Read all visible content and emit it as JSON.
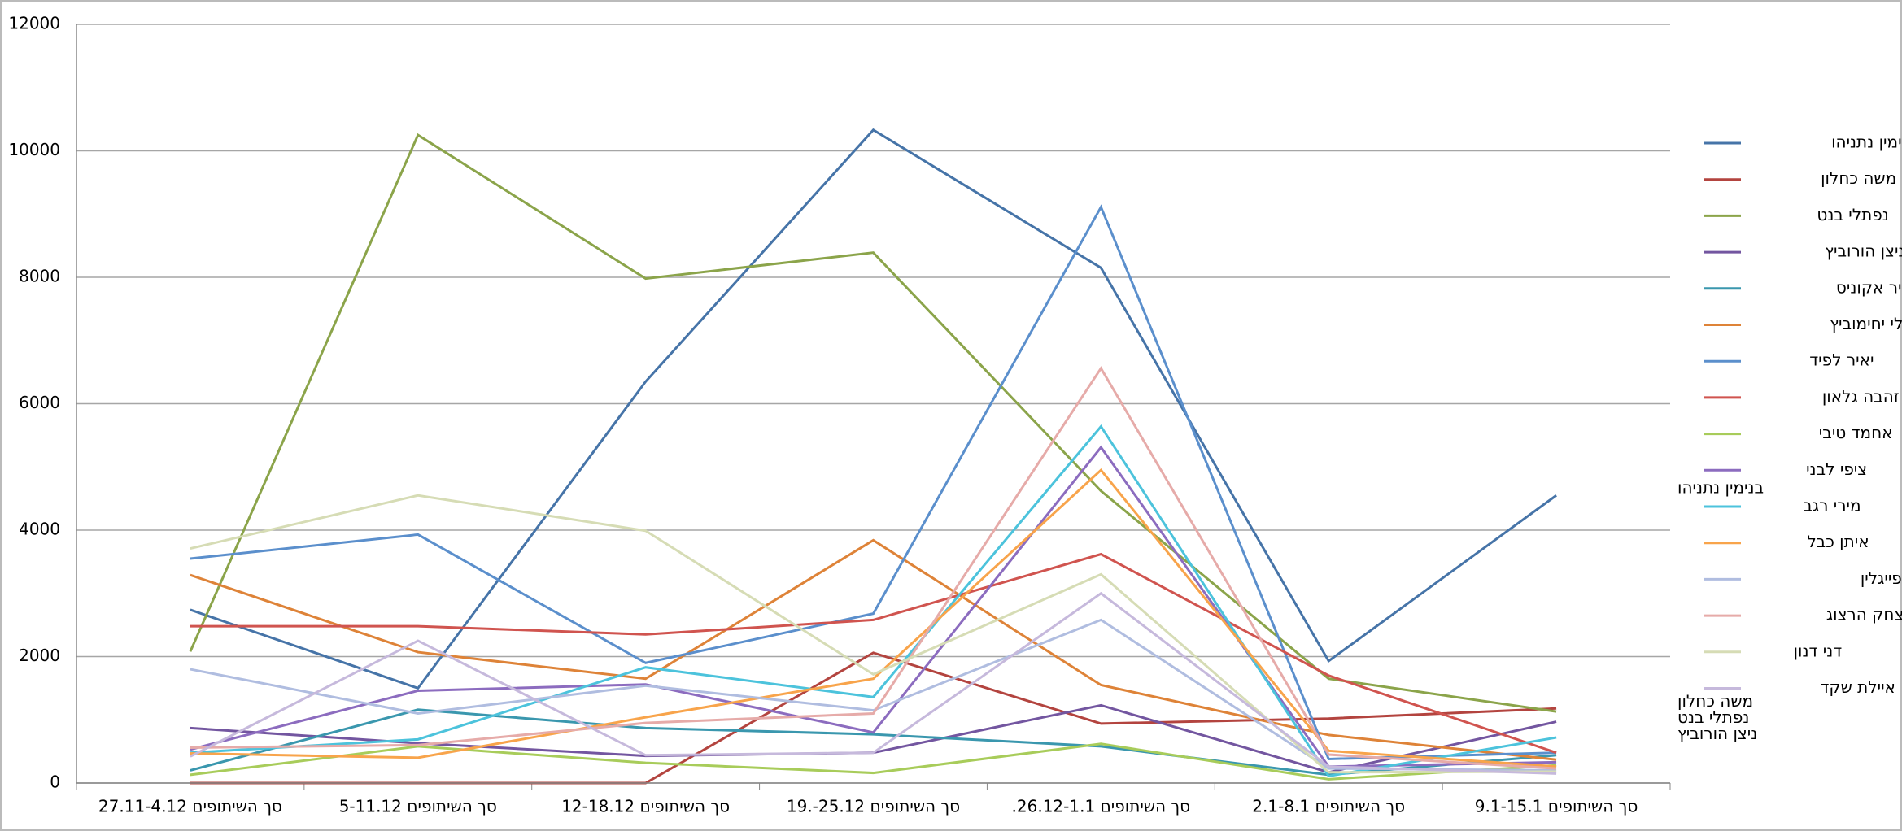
{
  "chart_data": {
    "type": "line",
    "categories": [
      "סך השיתופים 27.11-4.12",
      "סך השיתופים 5-11.12",
      "סך השיתופים 12-18.12",
      "סך השיתופים 25.12-.19",
      "סך השיתופים 26.12-1.1.",
      "סך השיתופים 2.1-8.1",
      "סך השיתופים 9.1-15.1"
    ],
    "ylim": [
      0,
      12000
    ],
    "yticks": [
      0,
      2000,
      4000,
      6000,
      8000,
      10000,
      12000
    ],
    "grid": true,
    "legend": "right",
    "series": [
      {
        "name": "בנימין נתניהו",
        "color": "#4674a8",
        "values": [
          2740,
          1500,
          6350,
          10330,
          8150,
          1930,
          4550
        ],
        "end_label": "בנימין נתניהו"
      },
      {
        "name": "משה כחלון",
        "color": "#b3443f",
        "values": [
          0,
          0,
          0,
          2060,
          940,
          1020,
          1180
        ],
        "end_label": "משה כחלון"
      },
      {
        "name": "נפתלי בנט",
        "color": "#8ba44a",
        "values": [
          2080,
          10250,
          7980,
          8390,
          4620,
          1650,
          1130
        ],
        "end_label": "נפתלי בנט"
      },
      {
        "name": "ניצן הורוביץ",
        "color": "#7356a0",
        "values": [
          870,
          630,
          430,
          480,
          1230,
          170,
          970
        ],
        "end_label": "ניצן הורוביץ"
      },
      {
        "name": "אופיר אקוניס",
        "color": "#3a97ae",
        "values": [
          200,
          1160,
          870,
          770,
          580,
          130,
          440
        ]
      },
      {
        "name": "שלי יחימוביץ",
        "color": "#de8338",
        "values": [
          3290,
          2070,
          1650,
          3840,
          1550,
          760,
          370
        ]
      },
      {
        "name": "יאיר לפיד",
        "color": "#5b8fcc",
        "values": [
          3550,
          3930,
          1900,
          2680,
          9110,
          380,
          480
        ]
      },
      {
        "name": "זהבה גלאון",
        "color": "#d0544f",
        "values": [
          2480,
          2480,
          2350,
          2580,
          3620,
          1700,
          480
        ]
      },
      {
        "name": "אחמד טיבי",
        "color": "#a8cc5a",
        "values": [
          130,
          580,
          320,
          160,
          620,
          60,
          280
        ]
      },
      {
        "name": "ציפי לבני",
        "color": "#8c6cbf",
        "values": [
          530,
          1460,
          1560,
          800,
          5310,
          260,
          330
        ]
      },
      {
        "name": "מירי רגב",
        "color": "#4cc3dc",
        "values": [
          480,
          690,
          1830,
          1360,
          5640,
          110,
          720
        ]
      },
      {
        "name": "איתן כבל",
        "color": "#f8a44b",
        "values": [
          470,
          400,
          1040,
          1650,
          4950,
          510,
          260
        ]
      },
      {
        "name": "משה זלמן פייגלין",
        "color": "#b0bde0",
        "values": [
          1800,
          1100,
          1540,
          1150,
          2580,
          230,
          200
        ]
      },
      {
        "name": "יצחק הרצוג",
        "color": "#e6aba9",
        "values": [
          560,
          600,
          950,
          1100,
          6560,
          450,
          230
        ]
      },
      {
        "name": "דני דנון",
        "color": "#d6dcb5",
        "values": [
          3710,
          4550,
          3990,
          1720,
          3300,
          170,
          180
        ]
      },
      {
        "name": "איילת שקד",
        "color": "#c6b9dc",
        "values": [
          420,
          2250,
          440,
          480,
          3000,
          260,
          150
        ]
      }
    ]
  }
}
